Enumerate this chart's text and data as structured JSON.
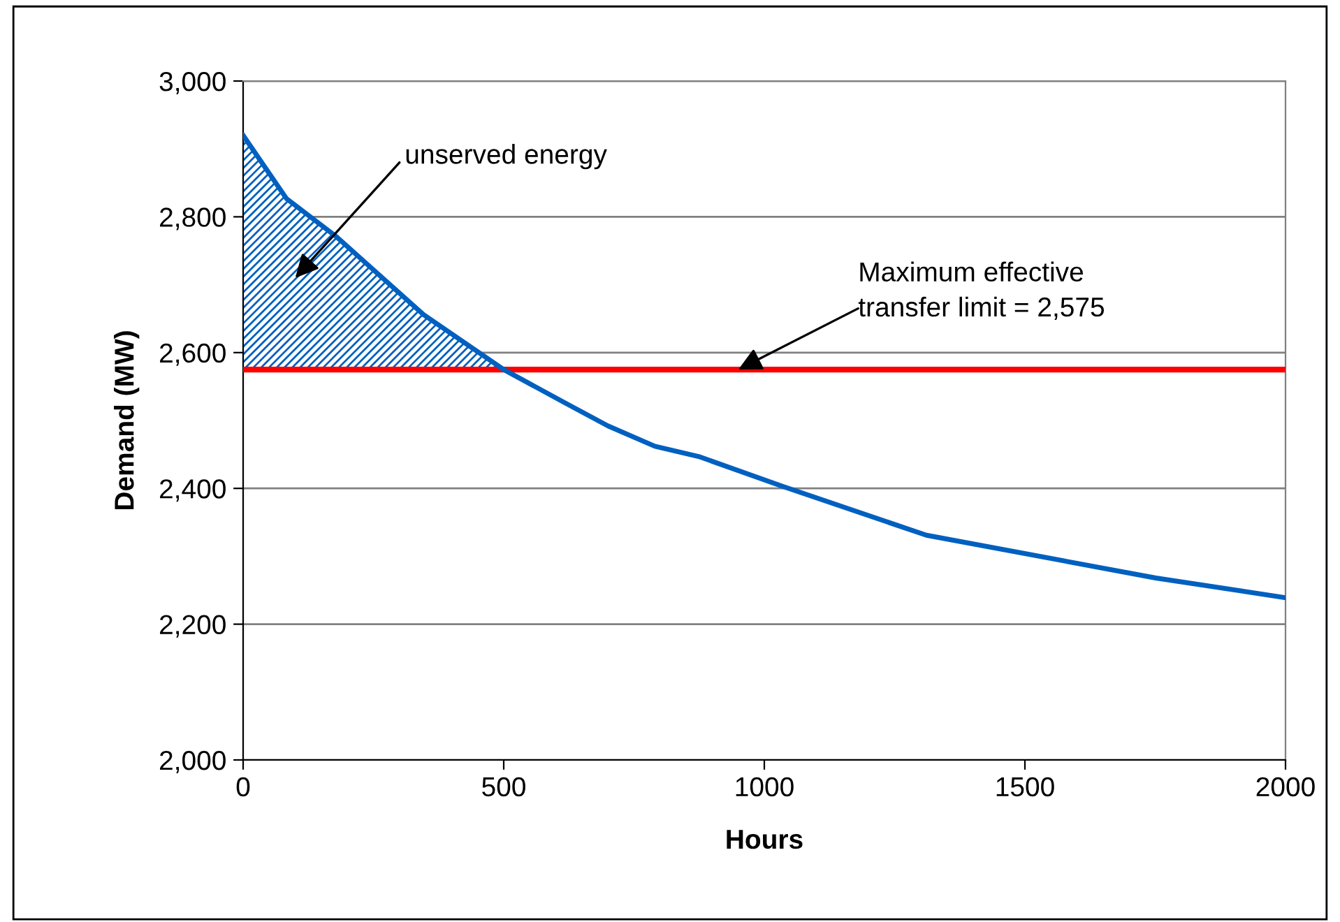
{
  "chart_data": {
    "type": "line",
    "xlabel": "Hours",
    "ylabel": "Demand (MW)",
    "series": [
      {
        "type": "area",
        "x": [
          0,
          83,
          180,
          346,
          500
        ],
        "values": [
          2920,
          2827,
          2770,
          2656,
          2575
        ],
        "color": "#0060c0"
      },
      {
        "x": [
          0,
          83,
          180,
          346,
          500,
          620,
          700,
          790,
          874,
          1035,
          1311,
          1751,
          2000
        ],
        "values": [
          2920,
          2827,
          2770,
          2656,
          2575,
          2525,
          2492,
          2462,
          2447,
          2403,
          2331,
          2268,
          2239
        ],
        "color": "#0060c0"
      }
    ],
    "ref_lines": [
      {
        "axis": "y",
        "value": 2575,
        "label": "Maximum effective\ntransfer limit = 2,575",
        "color": "#ff0000"
      }
    ],
    "annotations": [
      "unserved energy"
    ],
    "xlim": [
      0,
      2000
    ],
    "xticks": [
      0,
      500,
      1000,
      1500,
      2000
    ],
    "ylim": [
      2000,
      3000
    ],
    "yticks": [
      {
        "value": 2000,
        "label": "2,000"
      },
      {
        "value": 2200,
        "label": "2,200"
      },
      {
        "value": 2400,
        "label": "2,400"
      },
      {
        "value": 2600,
        "label": "2,600"
      },
      {
        "value": 2800,
        "label": "2,800"
      },
      {
        "value": 3000,
        "label": "3,000"
      }
    ],
    "grid": "y",
    "legend": false,
    "marker": "none",
    "line_style": "solid"
  }
}
